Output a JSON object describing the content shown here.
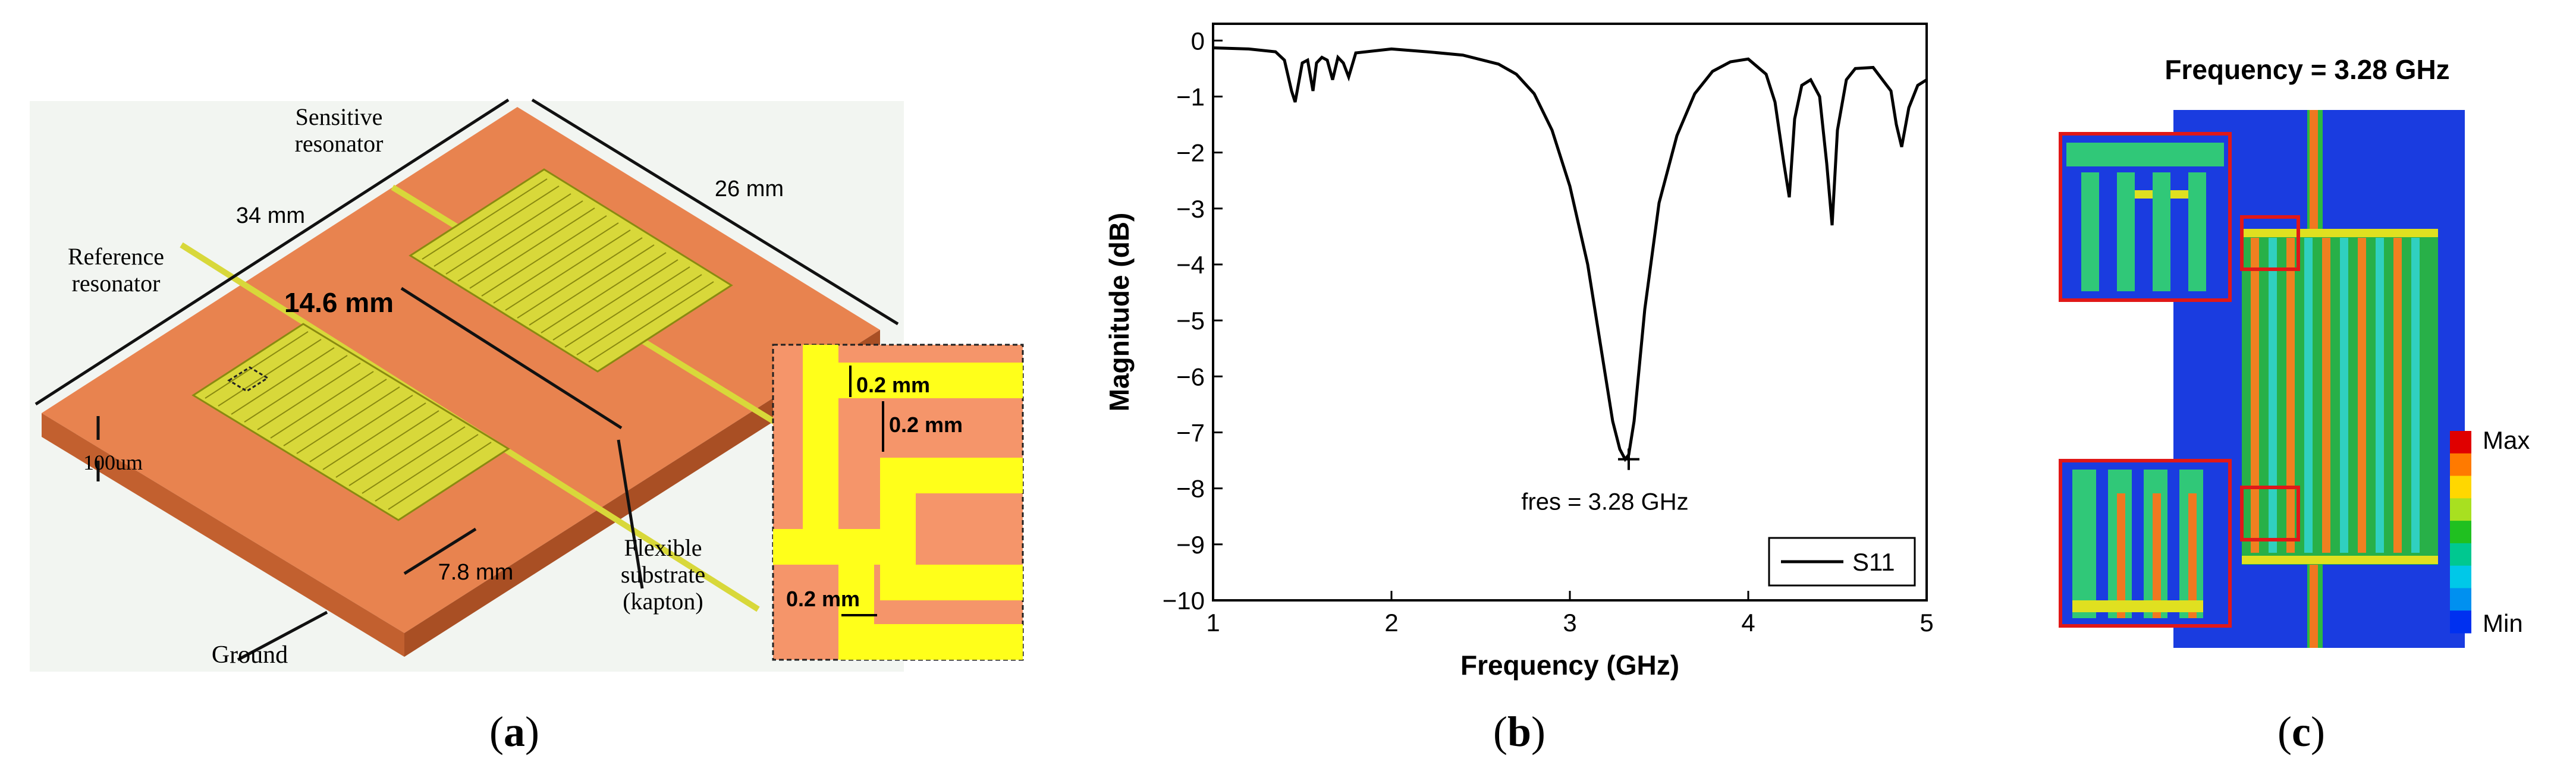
{
  "figure": {
    "panels": [
      {
        "id": "a",
        "caption_open": "(",
        "caption_letter": "a",
        "caption_close": ")"
      },
      {
        "id": "b",
        "caption_open": "(",
        "caption_letter": "b",
        "caption_close": ")"
      },
      {
        "id": "c",
        "caption_open": "(",
        "caption_letter": "c",
        "caption_close": ")"
      }
    ]
  },
  "panel_a": {
    "labels": {
      "sensitive": "Sensitive",
      "resonator": "resonator",
      "reference": "Reference",
      "dim_34": "34 mm",
      "dim_26": "26 mm",
      "dim_14_6": "14.6 mm",
      "dim_7_8": "7.8 mm",
      "thickness": "100um",
      "ground": "Ground",
      "flexible": "Flexible",
      "substrate": "substrate",
      "kapton": "(kapton)",
      "inset_w1": "0.2 mm",
      "inset_w2": "0.2 mm",
      "inset_w3": "0.2 mm"
    },
    "colors": {
      "substrate": "#e8834f",
      "substrate_side": "#c2602f",
      "copper": "#d8d83a",
      "trace": "#8a8a10",
      "inset_bg": "#f5956a",
      "inset_yellow": "#ffff1a"
    }
  },
  "chart_data": {
    "type": "line",
    "title": "",
    "xlabel": "Frequency (GHz)",
    "ylabel": "Magnitude (dB)",
    "xlim": [
      1,
      5
    ],
    "ylim": [
      -10,
      0.3
    ],
    "xticks": [
      1,
      2,
      3,
      4,
      5
    ],
    "yticks": [
      0,
      -1,
      -2,
      -3,
      -4,
      -5,
      -6,
      -7,
      -8,
      -9,
      -10
    ],
    "legend": {
      "placement": "bottom-right",
      "entries": [
        "S11"
      ]
    },
    "annotation": {
      "text": "fres = 3.28 GHz",
      "x": 3.33,
      "y": -7.48,
      "marker": "+"
    },
    "series": [
      {
        "name": "S11",
        "x": [
          1.0,
          1.2,
          1.35,
          1.4,
          1.44,
          1.46,
          1.5,
          1.53,
          1.56,
          1.58,
          1.61,
          1.64,
          1.67,
          1.7,
          1.73,
          1.76,
          1.8,
          2.0,
          2.2,
          2.4,
          2.6,
          2.7,
          2.8,
          2.9,
          3.0,
          3.1,
          3.18,
          3.24,
          3.28,
          3.31,
          3.33,
          3.36,
          3.42,
          3.5,
          3.6,
          3.7,
          3.8,
          3.9,
          4.0,
          4.1,
          4.15,
          4.2,
          4.23,
          4.26,
          4.3,
          4.35,
          4.4,
          4.44,
          4.47,
          4.5,
          4.55,
          4.6,
          4.7,
          4.8,
          4.83,
          4.86,
          4.9,
          4.95,
          5.0
        ],
        "values": [
          -0.13,
          -0.15,
          -0.2,
          -0.35,
          -0.9,
          -1.1,
          -0.4,
          -0.35,
          -0.9,
          -0.4,
          -0.3,
          -0.35,
          -0.7,
          -0.3,
          -0.4,
          -0.65,
          -0.22,
          -0.15,
          -0.2,
          -0.26,
          -0.42,
          -0.6,
          -0.95,
          -1.6,
          -2.6,
          -4.0,
          -5.6,
          -6.8,
          -7.3,
          -7.48,
          -7.4,
          -6.8,
          -4.8,
          -2.9,
          -1.7,
          -0.95,
          -0.55,
          -0.38,
          -0.33,
          -0.6,
          -1.1,
          -2.2,
          -2.8,
          -1.4,
          -0.8,
          -0.7,
          -1.0,
          -2.2,
          -3.3,
          -1.6,
          -0.7,
          -0.5,
          -0.48,
          -0.9,
          -1.5,
          -1.9,
          -1.2,
          -0.8,
          -0.7
        ]
      }
    ]
  },
  "panel_c": {
    "title": "Frequency = 3.28 GHz",
    "legend_max": "Max",
    "legend_min": "Min",
    "colorbar": [
      "#e00000",
      "#ff7a00",
      "#ffd700",
      "#a8e020",
      "#20c020",
      "#00c890",
      "#00c8e8",
      "#0090f0",
      "#0030f0"
    ]
  }
}
